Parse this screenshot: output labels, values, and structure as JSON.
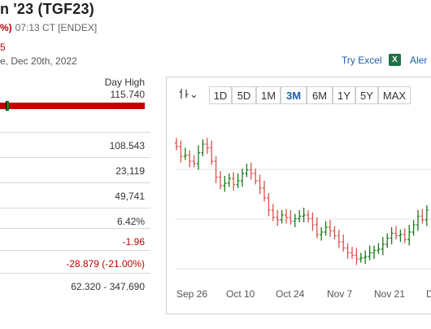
{
  "header": {
    "title": "n '23 (TGF23)",
    "change_pct": "%)",
    "time": "07:13 CT [ENDEX]",
    "frag5": "5",
    "date": "e, Dec 20th, 2022",
    "try_excel": "Try Excel",
    "excel_icon": "X",
    "alert": "Aler"
  },
  "range": {
    "day_high_label": "Day High",
    "day_high_value": "115.740",
    "marker_fraction": 0.04
  },
  "stats": [
    {
      "value": "108.543",
      "color": "#333333"
    },
    {
      "value": "23,119",
      "color": "#333333"
    },
    {
      "value": "49,741",
      "color": "#333333"
    },
    {
      "value": "6.42%",
      "color": "#333333"
    },
    {
      "value": "-1.96",
      "color": "#c00000"
    },
    {
      "value": "-28.879 (-21.00%)",
      "color": "#c00000"
    },
    {
      "value": "62.320 - 347.690",
      "color": "#333333"
    }
  ],
  "chart": {
    "type_icon": "candlestick-chart-icon",
    "type_chevron": "⌄",
    "ranges": [
      "1D",
      "5D",
      "1M",
      "3M",
      "6M",
      "1Y",
      "5Y",
      "MAX"
    ],
    "active_range": "3M",
    "x_labels": [
      "Sep 26",
      "Oct 10",
      "Oct 24",
      "Nov 7",
      "Nov 21",
      "D"
    ],
    "up_color": "#1a7a1a",
    "down_color": "#d9534f"
  },
  "chart_data": {
    "type": "ohlc",
    "x_labels": [
      "Sep 26",
      "Oct 10",
      "Oct 24",
      "Nov 7",
      "Nov 21",
      "D"
    ],
    "closes": [
      150,
      142,
      143,
      138,
      136,
      145,
      152,
      149,
      138,
      125,
      118,
      120,
      124,
      119,
      122,
      128,
      131,
      128,
      122,
      116,
      108,
      98,
      92,
      90,
      94,
      92,
      89,
      91,
      93,
      94,
      91,
      86,
      78,
      80,
      84,
      81,
      77,
      72,
      67,
      63,
      61,
      58,
      59,
      60,
      63,
      65,
      66,
      70,
      75,
      79,
      77,
      78,
      74,
      80,
      86,
      93,
      90,
      98
    ]
  }
}
